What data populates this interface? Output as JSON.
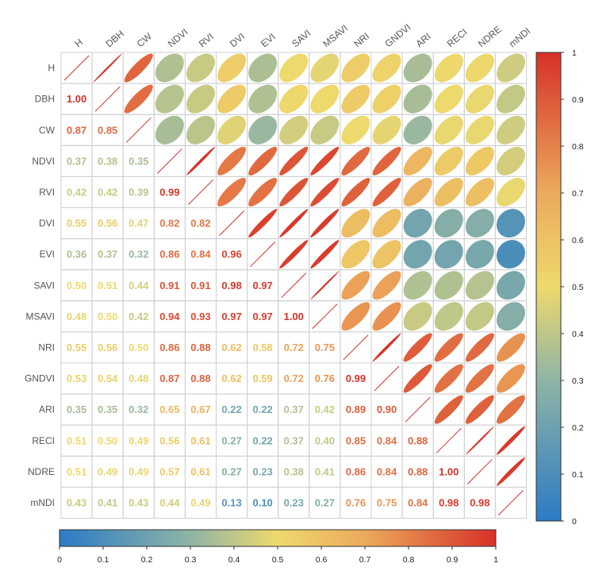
{
  "chart_data": {
    "type": "heatmap",
    "variables": [
      "H",
      "DBH",
      "CW",
      "NDVI",
      "RVI",
      "DVI",
      "EVI",
      "SAVI",
      "MSAVI",
      "NRI",
      "GNDVI",
      "ARI",
      "RECI",
      "NDRE",
      "mNDI"
    ],
    "lower_triangle_values": [
      [],
      [
        1.0
      ],
      [
        0.87,
        0.85
      ],
      [
        0.37,
        0.38,
        0.35
      ],
      [
        0.42,
        0.42,
        0.39,
        0.99
      ],
      [
        0.55,
        0.56,
        0.47,
        0.82,
        0.82
      ],
      [
        0.36,
        0.37,
        0.32,
        0.86,
        0.84,
        0.96
      ],
      [
        0.5,
        0.51,
        0.44,
        0.91,
        0.91,
        0.98,
        0.97
      ],
      [
        0.48,
        0.5,
        0.42,
        0.94,
        0.93,
        0.97,
        0.97,
        1.0
      ],
      [
        0.55,
        0.56,
        0.5,
        0.86,
        0.88,
        0.62,
        0.58,
        0.72,
        0.75
      ],
      [
        0.53,
        0.54,
        0.48,
        0.87,
        0.88,
        0.62,
        0.59,
        0.72,
        0.76,
        0.99
      ],
      [
        0.35,
        0.35,
        0.32,
        0.65,
        0.67,
        0.22,
        0.22,
        0.37,
        0.42,
        0.89,
        0.9
      ],
      [
        0.51,
        0.5,
        0.49,
        0.56,
        0.61,
        0.27,
        0.22,
        0.37,
        0.4,
        0.85,
        0.84,
        0.88
      ],
      [
        0.51,
        0.49,
        0.49,
        0.57,
        0.61,
        0.27,
        0.23,
        0.38,
        0.41,
        0.86,
        0.84,
        0.88,
        1.0
      ],
      [
        0.43,
        0.41,
        0.43,
        0.44,
        0.49,
        0.13,
        0.1,
        0.23,
        0.27,
        0.76,
        0.75,
        0.84,
        0.98,
        0.98
      ]
    ],
    "lower_triangle_labels": [
      [],
      [
        "1.00"
      ],
      [
        "0.87",
        "0.85"
      ],
      [
        "0.37",
        "0.38",
        "0.35"
      ],
      [
        "0.42",
        "0.42",
        "0.39",
        "0.99"
      ],
      [
        "0.55",
        "0.56",
        "0.47",
        "0.82",
        "0.82"
      ],
      [
        "0.36",
        "0.37",
        "0.32",
        "0.86",
        "0.84",
        "0.96"
      ],
      [
        "0.50",
        "0.51",
        "0.44",
        "0.91",
        "0.91",
        "0.98",
        "0.97"
      ],
      [
        "0.48",
        "0.50",
        "0.42",
        "0.94",
        "0.93",
        "0.97",
        "0.97",
        "1.00"
      ],
      [
        "0.55",
        "0.56",
        "0.50",
        "0.86",
        "0.88",
        "0.62",
        "0.58",
        "0.72",
        "0.75"
      ],
      [
        "0.53",
        "0.54",
        "0.48",
        "0.87",
        "0.88",
        "0.62",
        "0.59",
        "0.72",
        "0.76",
        "0.99"
      ],
      [
        "0.35",
        "0.35",
        "0.32",
        "0.65",
        "0.67",
        "0.22",
        "0.22",
        "0.37",
        "0.42",
        "0.89",
        "0.90"
      ],
      [
        "0.51",
        "0.50",
        "0.49",
        "0.56",
        "0.61",
        "0.27",
        "0.22",
        "0.37",
        "0.40",
        "0.85",
        "0.84",
        "0.88"
      ],
      [
        "0.51",
        "0.49",
        "0.49",
        "0.57",
        "0.61",
        "0.27",
        "0.23",
        "0.38",
        "0.41",
        "0.86",
        "0.84",
        "0.88",
        "1.00"
      ],
      [
        "0.43",
        "0.41",
        "0.43",
        "0.44",
        "0.49",
        "0.13",
        "0.10",
        "0.23",
        "0.27",
        "0.76",
        "0.75",
        "0.84",
        "0.98",
        "0.98"
      ]
    ],
    "upper_triangle": "ellipses (shape and colour encode the same coefficient as the mirrored lower cell)",
    "diagonal": "line",
    "value_range": [
      0,
      1
    ],
    "colorscale": [
      "#2b7bc5",
      "#8fb4a5",
      "#eed96c",
      "#ecaa5c",
      "#d73027"
    ],
    "colorbar_right": {
      "ticks": [
        "1",
        "0.9",
        "0.8",
        "0.7",
        "0.6",
        "0.5",
        "0.4",
        "0.3",
        "0.2",
        "0.1",
        "0"
      ]
    },
    "colorbar_bottom": {
      "ticks": [
        "0",
        "0.1",
        "0.2",
        "0.3",
        "0.4",
        "0.5",
        "0.6",
        "0.7",
        "0.8",
        "0.9",
        "1"
      ]
    },
    "title": "",
    "xlabel": "",
    "ylabel": "",
    "grid": true
  }
}
